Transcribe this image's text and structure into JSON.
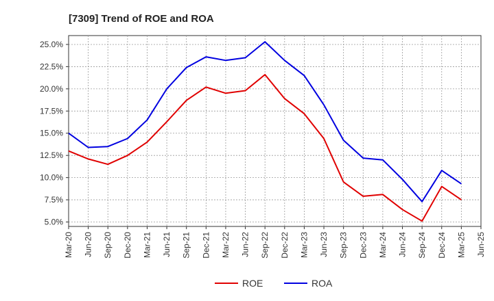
{
  "chart_data": {
    "type": "line",
    "title": "[7309]  Trend of ROE and ROA",
    "xlabel": "",
    "ylabel": "",
    "ylim": [
      4.5,
      26.0
    ],
    "yticks": [
      "5.0%",
      "7.5%",
      "10.0%",
      "12.5%",
      "15.0%",
      "17.5%",
      "20.0%",
      "22.5%",
      "25.0%"
    ],
    "ytick_values": [
      5.0,
      7.5,
      10.0,
      12.5,
      15.0,
      17.5,
      20.0,
      22.5,
      25.0
    ],
    "x_tick_labels": [
      "Mar-20",
      "Jun-20",
      "Sep-20",
      "Dec-20",
      "Mar-21",
      "Jun-21",
      "Sep-21",
      "Dec-21",
      "Mar-22",
      "Jun-22",
      "Sep-22",
      "Dec-22",
      "Mar-23",
      "Jun-23",
      "Sep-23",
      "Dec-23",
      "Mar-24",
      "Jun-24",
      "Sep-24",
      "Dec-24",
      "Mar-25",
      "Jun-25"
    ],
    "x": [
      "Mar-20",
      "Jun-20",
      "Sep-20",
      "Dec-20",
      "Mar-21",
      "Jun-21",
      "Sep-21",
      "Dec-21",
      "Mar-22",
      "Jun-22",
      "Sep-22",
      "Dec-22",
      "Mar-23",
      "Jun-23",
      "Sep-23",
      "Dec-23",
      "Mar-24",
      "Jun-24",
      "Sep-24",
      "Dec-24",
      "Mar-25"
    ],
    "grid": true,
    "legend_position": "bottom-center",
    "series": [
      {
        "name": "ROE",
        "color": "#e00000",
        "values": [
          13.0,
          12.1,
          11.5,
          12.5,
          14.0,
          16.3,
          18.7,
          20.2,
          19.5,
          19.8,
          21.6,
          18.9,
          17.2,
          14.4,
          9.5,
          7.9,
          8.1,
          6.4,
          5.1,
          9.0,
          7.5
        ]
      },
      {
        "name": "ROA",
        "color": "#0000e0",
        "values": [
          15.0,
          13.4,
          13.5,
          14.4,
          16.5,
          20.0,
          22.4,
          23.6,
          23.2,
          23.5,
          25.3,
          23.2,
          21.5,
          18.2,
          14.2,
          12.2,
          12.0,
          9.8,
          7.3,
          10.8,
          9.3
        ]
      }
    ]
  }
}
